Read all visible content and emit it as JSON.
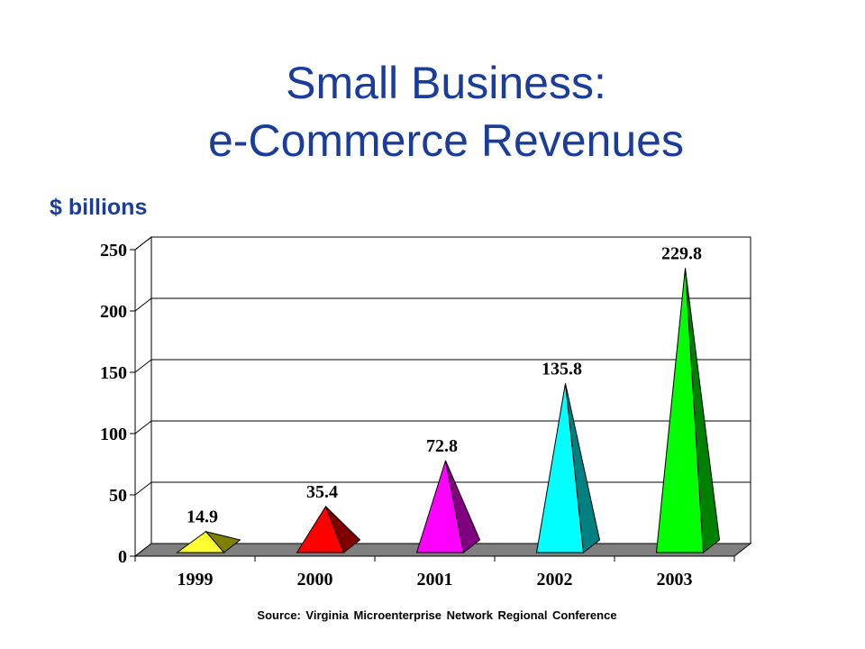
{
  "title_line1": "Small Business:",
  "title_line2": "e-Commerce Revenues",
  "units_label": "$ billions",
  "source": "Source: Virginia Microenterprise Network Regional Conference",
  "chart_data": {
    "type": "bar",
    "mark": "pyramid",
    "categories": [
      "1999",
      "2000",
      "2001",
      "2002",
      "2003"
    ],
    "values": [
      14.9,
      35.4,
      72.8,
      135.8,
      229.8
    ],
    "data_labels": [
      "14.9",
      "35.4",
      "72.8",
      "135.8",
      "229.8"
    ],
    "ylim": [
      0,
      250
    ],
    "yticks": [
      0,
      50,
      100,
      150,
      200,
      250
    ],
    "grid": true,
    "legend": "none",
    "colors": [
      {
        "front": "#ffff33",
        "side": "#808000"
      },
      {
        "front": "#ff0000",
        "side": "#800000"
      },
      {
        "front": "#ff00ff",
        "side": "#800080"
      },
      {
        "front": "#00ffff",
        "side": "#008080"
      },
      {
        "front": "#00ff00",
        "side": "#008000"
      }
    ]
  }
}
